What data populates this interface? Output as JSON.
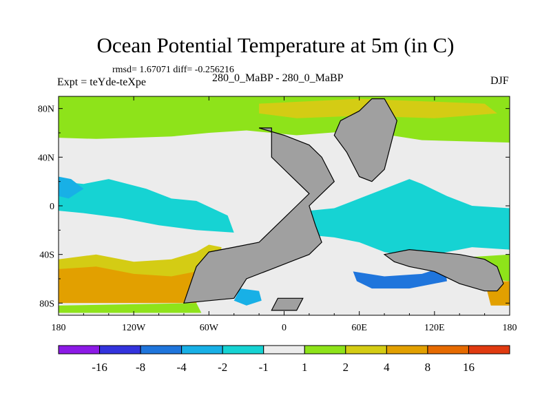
{
  "chart_data": {
    "type": "heatmap",
    "title": "Ocean Potential Temperature at 5m (in C)",
    "stats_text": "rmsd= 1.67071 diff= -0.256216",
    "left_label": "Expt = teYde-teXpe",
    "subtitle": "280_0_MaBP - 280_0_MaBP",
    "right_label": "DJF",
    "x_range": [
      -180,
      180
    ],
    "y_range": [
      -90,
      90
    ],
    "x_ticks": [
      {
        "value": -180,
        "label": "180"
      },
      {
        "value": -120,
        "label": "120W"
      },
      {
        "value": -60,
        "label": "60W"
      },
      {
        "value": 0,
        "label": "0"
      },
      {
        "value": 60,
        "label": "60E"
      },
      {
        "value": 120,
        "label": "120E"
      },
      {
        "value": 180,
        "label": "180"
      }
    ],
    "y_ticks": [
      {
        "value": 80,
        "label": "80N"
      },
      {
        "value": 40,
        "label": "40N"
      },
      {
        "value": 0,
        "label": "0"
      },
      {
        "value": -40,
        "label": "40S"
      },
      {
        "value": -80,
        "label": "80S"
      }
    ],
    "colorbar": {
      "labels": [
        "-16",
        "-8",
        "-4",
        "-2",
        "-1",
        "1",
        "2",
        "4",
        "8",
        "16"
      ],
      "colors": [
        "#8c1ae6",
        "#3333dd",
        "#1f75dc",
        "#18b0e6",
        "#16d3d3",
        "#ececec",
        "#8ee31a",
        "#d4cc14",
        "#e2a000",
        "#e66a00",
        "#e03a10"
      ]
    },
    "colors": {
      "land": "#a0a0a0",
      "green": "#8ee31a",
      "yellow": "#d4cc14",
      "orange": "#e2a000",
      "white": "#ececec",
      "cyan": "#16d3d3",
      "lightblue": "#18b0e6",
      "blue": "#1f75dc"
    },
    "regions": [
      {
        "name": "arctic-green-band",
        "level": "green",
        "points": [
          [
            -180,
            90
          ],
          [
            180,
            90
          ],
          [
            180,
            52
          ],
          [
            110,
            54
          ],
          [
            60,
            62
          ],
          [
            10,
            58
          ],
          [
            -30,
            62
          ],
          [
            -60,
            60
          ],
          [
            -90,
            57
          ],
          [
            -120,
            56
          ],
          [
            -150,
            55
          ],
          [
            -180,
            56
          ]
        ]
      },
      {
        "name": "north-atlantic-warm",
        "level": "yellow",
        "points": [
          [
            -20,
            84
          ],
          [
            60,
            88
          ],
          [
            160,
            84
          ],
          [
            170,
            76
          ],
          [
            120,
            72
          ],
          [
            60,
            74
          ],
          [
            10,
            72
          ],
          [
            -20,
            76
          ]
        ]
      },
      {
        "name": "north-pacific-white",
        "level": "white",
        "points": [
          [
            -180,
            50
          ],
          [
            -150,
            52
          ],
          [
            -120,
            47
          ],
          [
            -90,
            49
          ],
          [
            -60,
            45
          ],
          [
            -50,
            28
          ],
          [
            -80,
            26
          ],
          [
            -110,
            22
          ],
          [
            -140,
            26
          ],
          [
            -170,
            24
          ],
          [
            -180,
            28
          ]
        ]
      },
      {
        "name": "pacific-equatorial-cyan",
        "level": "cyan",
        "points": [
          [
            -180,
            20
          ],
          [
            -160,
            18
          ],
          [
            -140,
            22
          ],
          [
            -110,
            14
          ],
          [
            -90,
            6
          ],
          [
            -70,
            4
          ],
          [
            -45,
            -8
          ],
          [
            -40,
            -22
          ],
          [
            -70,
            -20
          ],
          [
            -100,
            -16
          ],
          [
            -130,
            -10
          ],
          [
            -160,
            -6
          ],
          [
            -180,
            -4
          ]
        ]
      },
      {
        "name": "pacific-lightblue-patch",
        "level": "lightblue",
        "points": [
          [
            -180,
            24
          ],
          [
            -170,
            22
          ],
          [
            -160,
            14
          ],
          [
            -172,
            6
          ],
          [
            -180,
            8
          ]
        ]
      },
      {
        "name": "pacific-south-white",
        "level": "white",
        "points": [
          [
            -180,
            -14
          ],
          [
            -150,
            -12
          ],
          [
            -120,
            -18
          ],
          [
            -90,
            -22
          ],
          [
            -60,
            -26
          ],
          [
            -50,
            -36
          ],
          [
            -80,
            -38
          ],
          [
            -110,
            -32
          ],
          [
            -140,
            -38
          ],
          [
            -170,
            -36
          ],
          [
            -180,
            -34
          ]
        ]
      },
      {
        "name": "southern-pacific-yellow",
        "level": "yellow",
        "points": [
          [
            -180,
            -44
          ],
          [
            -150,
            -40
          ],
          [
            -120,
            -46
          ],
          [
            -90,
            -44
          ],
          [
            -70,
            -38
          ],
          [
            -60,
            -32
          ],
          [
            -50,
            -34
          ],
          [
            -52,
            -70
          ],
          [
            -180,
            -70
          ]
        ]
      },
      {
        "name": "southern-pacific-orange",
        "level": "orange",
        "points": [
          [
            -180,
            -52
          ],
          [
            -150,
            -50
          ],
          [
            -120,
            -56
          ],
          [
            -90,
            -58
          ],
          [
            -70,
            -54
          ],
          [
            -62,
            -60
          ],
          [
            -70,
            -80
          ],
          [
            -180,
            -80
          ]
        ]
      },
      {
        "name": "southern-pacific-green",
        "level": "green",
        "points": [
          [
            -180,
            -82
          ],
          [
            -70,
            -80
          ],
          [
            -66,
            -88
          ],
          [
            -180,
            -88
          ]
        ]
      },
      {
        "name": "indian-ocean-cyan",
        "level": "cyan",
        "points": [
          [
            20,
            -4
          ],
          [
            40,
            -2
          ],
          [
            60,
            6
          ],
          [
            80,
            14
          ],
          [
            100,
            22
          ],
          [
            110,
            18
          ],
          [
            130,
            8
          ],
          [
            150,
            0
          ],
          [
            180,
            -2
          ],
          [
            180,
            -36
          ],
          [
            150,
            -34
          ],
          [
            120,
            -40
          ],
          [
            100,
            -42
          ],
          [
            80,
            -38
          ],
          [
            60,
            -30
          ],
          [
            40,
            -26
          ],
          [
            20,
            -24
          ]
        ]
      },
      {
        "name": "indian-ocean-white",
        "level": "white",
        "points": [
          [
            45,
            -38
          ],
          [
            80,
            -40
          ],
          [
            110,
            -44
          ],
          [
            120,
            -48
          ],
          [
            100,
            -52
          ],
          [
            70,
            -50
          ],
          [
            50,
            -46
          ]
        ]
      },
      {
        "name": "indian-ocean-blue",
        "level": "blue",
        "points": [
          [
            55,
            -54
          ],
          [
            80,
            -58
          ],
          [
            110,
            -56
          ],
          [
            128,
            -50
          ],
          [
            130,
            -62
          ],
          [
            100,
            -68
          ],
          [
            70,
            -68
          ],
          [
            58,
            -62
          ]
        ]
      },
      {
        "name": "south-atlantic-blue",
        "level": "lightblue",
        "points": [
          [
            -35,
            -68
          ],
          [
            -20,
            -70
          ],
          [
            -18,
            -78
          ],
          [
            -30,
            -82
          ],
          [
            -40,
            -78
          ]
        ]
      },
      {
        "name": "east-pacific-green",
        "level": "green",
        "points": [
          [
            150,
            -42
          ],
          [
            180,
            -40
          ],
          [
            180,
            -62
          ],
          [
            160,
            -60
          ]
        ]
      },
      {
        "name": "east-pacific-orange",
        "level": "orange",
        "points": [
          [
            160,
            -62
          ],
          [
            180,
            -62
          ],
          [
            180,
            -82
          ],
          [
            165,
            -82
          ]
        ]
      }
    ],
    "land": [
      {
        "name": "americas",
        "points": [
          [
            -20,
            64
          ],
          [
            -10,
            64
          ],
          [
            -10,
            40
          ],
          [
            0,
            30
          ],
          [
            10,
            20
          ],
          [
            20,
            10
          ],
          [
            10,
            0
          ],
          [
            0,
            -10
          ],
          [
            -10,
            -20
          ],
          [
            -20,
            -30
          ],
          [
            -40,
            -34
          ],
          [
            -60,
            -38
          ],
          [
            -70,
            -50
          ],
          [
            -80,
            -80
          ],
          [
            -60,
            -78
          ],
          [
            -40,
            -76
          ],
          [
            -30,
            -60
          ],
          [
            -10,
            -52
          ],
          [
            10,
            -44
          ],
          [
            20,
            -40
          ],
          [
            30,
            -30
          ],
          [
            25,
            -16
          ],
          [
            20,
            0
          ],
          [
            30,
            10
          ],
          [
            40,
            20
          ],
          [
            35,
            30
          ],
          [
            30,
            40
          ],
          [
            20,
            50
          ],
          [
            0,
            58
          ]
        ]
      },
      {
        "name": "south-polar-block",
        "points": [
          [
            -10,
            -86
          ],
          [
            10,
            -86
          ],
          [
            15,
            -76
          ],
          [
            -5,
            -76
          ]
        ]
      },
      {
        "name": "eurasia-block",
        "points": [
          [
            60,
            78
          ],
          [
            70,
            88
          ],
          [
            80,
            88
          ],
          [
            90,
            70
          ],
          [
            85,
            50
          ],
          [
            80,
            30
          ],
          [
            70,
            20
          ],
          [
            60,
            24
          ],
          [
            50,
            44
          ],
          [
            40,
            58
          ],
          [
            45,
            70
          ]
        ]
      },
      {
        "name": "australia-block",
        "points": [
          [
            80,
            -40
          ],
          [
            100,
            -36
          ],
          [
            120,
            -38
          ],
          [
            140,
            -40
          ],
          [
            160,
            -44
          ],
          [
            170,
            -50
          ],
          [
            175,
            -64
          ],
          [
            170,
            -70
          ],
          [
            160,
            -70
          ],
          [
            140,
            -64
          ],
          [
            120,
            -54
          ],
          [
            100,
            -50
          ],
          [
            88,
            -46
          ]
        ]
      }
    ]
  }
}
